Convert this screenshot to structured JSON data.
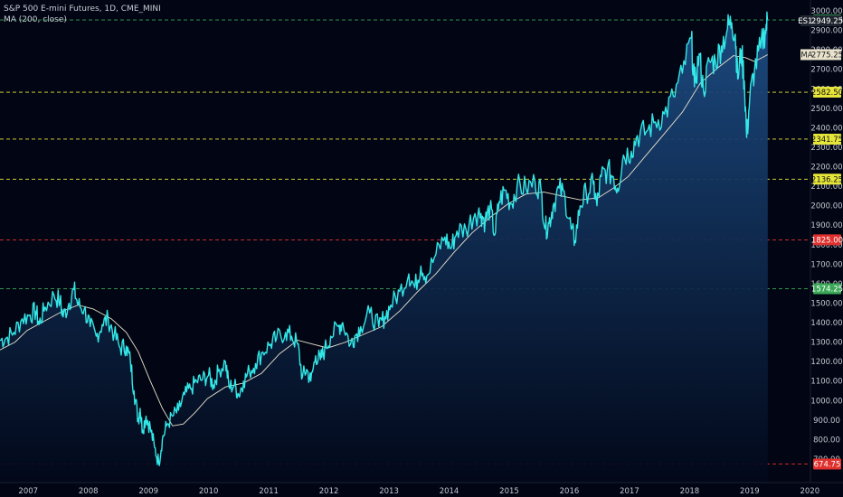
{
  "header": {
    "title": "S&P 500 E-mini Futures, 1D, CME_MINI",
    "indicator": "MA (200, close)"
  },
  "chart_data": {
    "type": "area",
    "title": "S&P 500 E-mini Futures, 1D, CME_MINI",
    "ylim": [
      680,
      3000
    ],
    "xlim": [
      2006.55,
      2020.03
    ],
    "y_ticks": [
      700,
      800,
      900,
      1000,
      1100,
      1200,
      1300,
      1400,
      1500,
      1600,
      1700,
      1800,
      1900,
      2000,
      2100,
      2200,
      2300,
      2400,
      2500,
      2600,
      2700,
      2800,
      2900,
      3000
    ],
    "y_tick_labels": [
      "700.00",
      "800.00",
      "900.00",
      "1000.00",
      "1100.00",
      "1200.00",
      "1300.00",
      "1400.00",
      "1500.00",
      "1600.00",
      "1700.00",
      "1800.00",
      "1900.00",
      "2000.00",
      "2100.00",
      "2200.00",
      "2300.00",
      "2400.00",
      "2500.00",
      "2600.00",
      "2700.00",
      "2800.00",
      "2900.00",
      "3000.00"
    ],
    "x_ticks": [
      2007,
      2008,
      2009,
      2010,
      2011,
      2012,
      2013,
      2014,
      2015,
      2016,
      2017,
      2018,
      2019,
      2020
    ],
    "x_tick_labels": [
      "2007",
      "2008",
      "2009",
      "2010",
      "2011",
      "2012",
      "2013",
      "2014",
      "2015",
      "2016",
      "2017",
      "2018",
      "2019",
      "2020"
    ],
    "series": [
      {
        "name": "ES1!",
        "color": "#33e8e8",
        "points": [
          [
            2006.55,
            1310
          ],
          [
            2006.65,
            1320
          ],
          [
            2006.78,
            1350
          ],
          [
            2006.92,
            1420
          ],
          [
            2007.05,
            1440
          ],
          [
            2007.15,
            1460
          ],
          [
            2007.2,
            1390
          ],
          [
            2007.3,
            1480
          ],
          [
            2007.45,
            1540
          ],
          [
            2007.55,
            1510
          ],
          [
            2007.6,
            1430
          ],
          [
            2007.7,
            1500
          ],
          [
            2007.78,
            1570
          ],
          [
            2007.85,
            1490
          ],
          [
            2007.95,
            1470
          ],
          [
            2008.05,
            1380
          ],
          [
            2008.15,
            1330
          ],
          [
            2008.25,
            1390
          ],
          [
            2008.35,
            1420
          ],
          [
            2008.45,
            1340
          ],
          [
            2008.55,
            1270
          ],
          [
            2008.65,
            1280
          ],
          [
            2008.72,
            1200
          ],
          [
            2008.78,
            1050
          ],
          [
            2008.85,
            900
          ],
          [
            2008.88,
            960
          ],
          [
            2008.92,
            850
          ],
          [
            2008.98,
            920
          ],
          [
            2009.05,
            860
          ],
          [
            2009.12,
            760
          ],
          [
            2009.19,
            680
          ],
          [
            2009.25,
            800
          ],
          [
            2009.32,
            870
          ],
          [
            2009.42,
            920
          ],
          [
            2009.52,
            950
          ],
          [
            2009.62,
            1030
          ],
          [
            2009.72,
            1060
          ],
          [
            2009.82,
            1100
          ],
          [
            2009.92,
            1110
          ],
          [
            2010.02,
            1130
          ],
          [
            2010.1,
            1080
          ],
          [
            2010.18,
            1150
          ],
          [
            2010.3,
            1200
          ],
          [
            2010.36,
            1070
          ],
          [
            2010.45,
            1080
          ],
          [
            2010.52,
            1030
          ],
          [
            2010.6,
            1100
          ],
          [
            2010.7,
            1150
          ],
          [
            2010.8,
            1190
          ],
          [
            2010.92,
            1250
          ],
          [
            2011.05,
            1290
          ],
          [
            2011.15,
            1320
          ],
          [
            2011.3,
            1350
          ],
          [
            2011.4,
            1330
          ],
          [
            2011.5,
            1290
          ],
          [
            2011.58,
            1120
          ],
          [
            2011.65,
            1160
          ],
          [
            2011.72,
            1100
          ],
          [
            2011.8,
            1230
          ],
          [
            2011.88,
            1210
          ],
          [
            2011.95,
            1260
          ],
          [
            2012.05,
            1330
          ],
          [
            2012.18,
            1380
          ],
          [
            2012.25,
            1400
          ],
          [
            2012.38,
            1290
          ],
          [
            2012.45,
            1330
          ],
          [
            2012.55,
            1380
          ],
          [
            2012.7,
            1450
          ],
          [
            2012.85,
            1380
          ],
          [
            2012.95,
            1430
          ],
          [
            2013.05,
            1490
          ],
          [
            2013.2,
            1560
          ],
          [
            2013.35,
            1650
          ],
          [
            2013.45,
            1580
          ],
          [
            2013.55,
            1690
          ],
          [
            2013.65,
            1640
          ],
          [
            2013.8,
            1750
          ],
          [
            2013.95,
            1840
          ],
          [
            2014.05,
            1780
          ],
          [
            2014.15,
            1870
          ],
          [
            2014.3,
            1880
          ],
          [
            2014.45,
            1960
          ],
          [
            2014.55,
            1960
          ],
          [
            2014.62,
            1920
          ],
          [
            2014.7,
            1990
          ],
          [
            2014.78,
            1850
          ],
          [
            2014.85,
            2020
          ],
          [
            2014.95,
            2080
          ],
          [
            2015.05,
            2010
          ],
          [
            2015.15,
            2100
          ],
          [
            2015.3,
            2090
          ],
          [
            2015.45,
            2120
          ],
          [
            2015.55,
            2080
          ],
          [
            2015.62,
            1880
          ],
          [
            2015.68,
            1910
          ],
          [
            2015.75,
            2000
          ],
          [
            2015.85,
            2090
          ],
          [
            2015.95,
            2040
          ],
          [
            2016.05,
            1880
          ],
          [
            2016.11,
            1820
          ],
          [
            2016.2,
            2000
          ],
          [
            2016.3,
            2070
          ],
          [
            2016.42,
            2110
          ],
          [
            2016.48,
            2000
          ],
          [
            2016.55,
            2150
          ],
          [
            2016.65,
            2180
          ],
          [
            2016.75,
            2150
          ],
          [
            2016.82,
            2090
          ],
          [
            2016.92,
            2260
          ],
          [
            2017.05,
            2280
          ],
          [
            2017.15,
            2360
          ],
          [
            2017.3,
            2380
          ],
          [
            2017.45,
            2430
          ],
          [
            2017.6,
            2470
          ],
          [
            2017.75,
            2560
          ],
          [
            2017.9,
            2680
          ],
          [
            2018.05,
            2860
          ],
          [
            2018.1,
            2610
          ],
          [
            2018.18,
            2780
          ],
          [
            2018.25,
            2590
          ],
          [
            2018.35,
            2740
          ],
          [
            2018.45,
            2740
          ],
          [
            2018.55,
            2820
          ],
          [
            2018.65,
            2910
          ],
          [
            2018.72,
            2940
          ],
          [
            2018.78,
            2880
          ],
          [
            2018.82,
            2650
          ],
          [
            2018.88,
            2800
          ],
          [
            2018.93,
            2640
          ],
          [
            2018.97,
            2350
          ],
          [
            2019.02,
            2550
          ],
          [
            2019.1,
            2700
          ],
          [
            2019.2,
            2810
          ],
          [
            2019.28,
            2900
          ],
          [
            2019.32,
            2953
          ]
        ]
      },
      {
        "name": "MA (200, close)",
        "color": "#e8e2cc",
        "points": [
          [
            2006.55,
            1260
          ],
          [
            2006.8,
            1300
          ],
          [
            2007.0,
            1360
          ],
          [
            2007.3,
            1410
          ],
          [
            2007.6,
            1460
          ],
          [
            2007.85,
            1490
          ],
          [
            2008.1,
            1470
          ],
          [
            2008.4,
            1420
          ],
          [
            2008.65,
            1350
          ],
          [
            2008.85,
            1250
          ],
          [
            2009.05,
            1100
          ],
          [
            2009.25,
            960
          ],
          [
            2009.42,
            870
          ],
          [
            2009.6,
            880
          ],
          [
            2009.8,
            940
          ],
          [
            2010.0,
            1010
          ],
          [
            2010.3,
            1070
          ],
          [
            2010.6,
            1090
          ],
          [
            2010.9,
            1140
          ],
          [
            2011.2,
            1240
          ],
          [
            2011.5,
            1310
          ],
          [
            2011.75,
            1290
          ],
          [
            2012.0,
            1270
          ],
          [
            2012.3,
            1300
          ],
          [
            2012.6,
            1340
          ],
          [
            2012.9,
            1380
          ],
          [
            2013.2,
            1460
          ],
          [
            2013.5,
            1560
          ],
          [
            2013.8,
            1650
          ],
          [
            2014.1,
            1760
          ],
          [
            2014.4,
            1860
          ],
          [
            2014.7,
            1940
          ],
          [
            2015.0,
            2010
          ],
          [
            2015.3,
            2060
          ],
          [
            2015.6,
            2070
          ],
          [
            2015.9,
            2050
          ],
          [
            2016.2,
            2030
          ],
          [
            2016.5,
            2040
          ],
          [
            2016.75,
            2090
          ],
          [
            2017.0,
            2150
          ],
          [
            2017.3,
            2260
          ],
          [
            2017.6,
            2370
          ],
          [
            2017.9,
            2480
          ],
          [
            2018.2,
            2630
          ],
          [
            2018.5,
            2710
          ],
          [
            2018.75,
            2770
          ],
          [
            2018.95,
            2760
          ],
          [
            2019.1,
            2740
          ],
          [
            2019.32,
            2775
          ]
        ]
      }
    ],
    "horizontal_lines": [
      {
        "value": 2953.25,
        "label": "2953.25",
        "color": "#3aa856"
      },
      {
        "value": 2582.5,
        "label": "2582.50",
        "color": "#e6e63a"
      },
      {
        "value": 2341.75,
        "label": "2341.75",
        "color": "#e6e63a"
      },
      {
        "value": 2136.25,
        "label": "2136.25",
        "color": "#e6e63a"
      },
      {
        "value": 1825.0,
        "label": "1825.00",
        "color": "#e0302e"
      },
      {
        "value": 1574.25,
        "label": "1574.25",
        "color": "#3aa856"
      },
      {
        "value": 674.75,
        "label": "674.75",
        "color": "#e0302e"
      }
    ],
    "price_badges": [
      {
        "value": 2949.25,
        "name_label": "ES1!",
        "value_label": "2949.25",
        "bg": "#20262f",
        "fg": "#ffffff"
      },
      {
        "value": 2775.25,
        "name_label": "MA",
        "value_label": "2775.25",
        "bg": "#e8e2cc",
        "fg": "#222222"
      }
    ],
    "grid": false,
    "area_gradient": [
      "#1d4e86",
      "#02081a"
    ]
  }
}
